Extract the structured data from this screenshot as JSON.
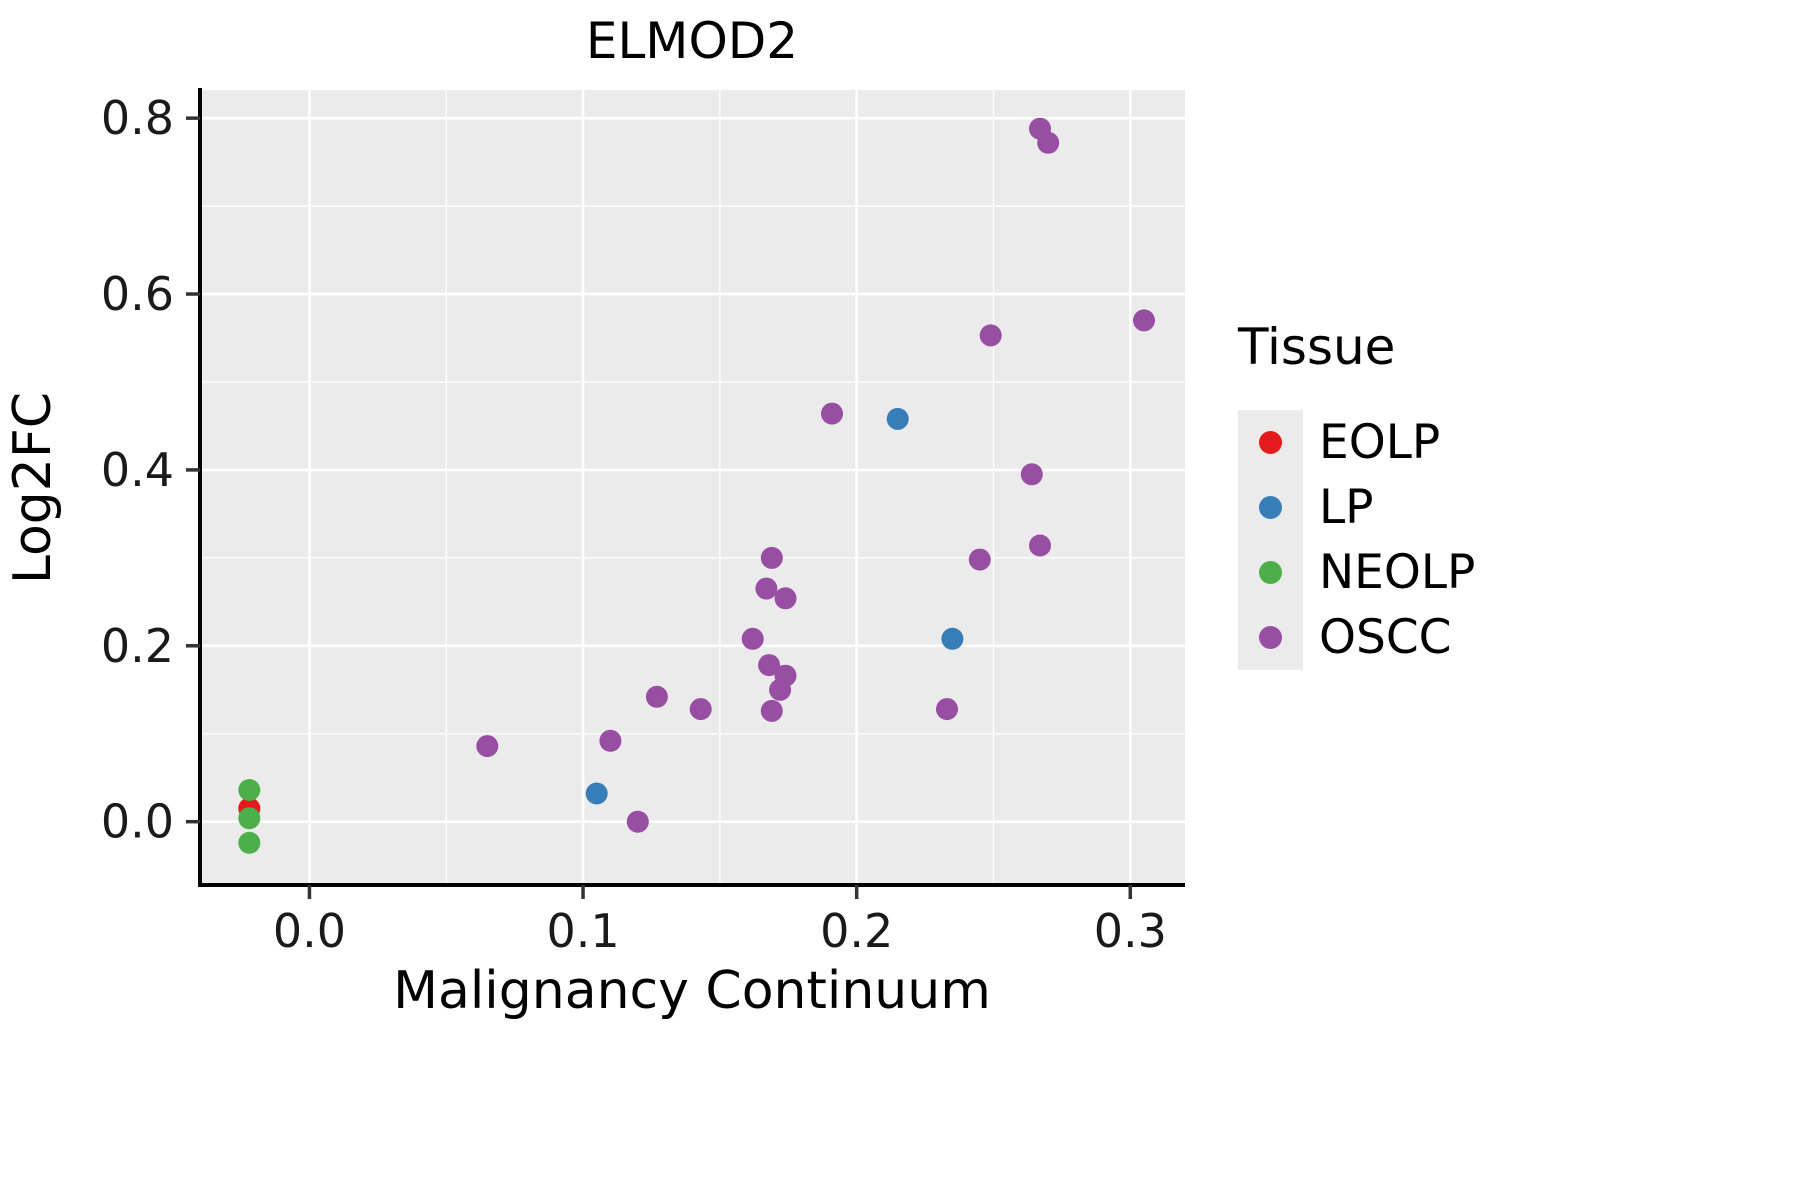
{
  "chart_data": {
    "type": "scatter",
    "title": "ELMOD2",
    "xlabel": "Malignancy Continuum",
    "ylabel": "Log2FC",
    "xlim": [
      -0.04,
      0.32
    ],
    "ylim": [
      -0.072,
      0.832
    ],
    "x_ticks": [
      0.0,
      0.1,
      0.2,
      0.3
    ],
    "x_tick_labels": [
      "0.0",
      "0.1",
      "0.2",
      "0.3"
    ],
    "y_ticks": [
      0.0,
      0.2,
      0.4,
      0.6,
      0.8
    ],
    "y_tick_labels": [
      "0.0",
      "0.2",
      "0.4",
      "0.6",
      "0.8"
    ],
    "x_minor_ticks": [
      0.05,
      0.15,
      0.25
    ],
    "y_minor_ticks": [
      0.1,
      0.3,
      0.5,
      0.7
    ],
    "grid": true,
    "legend_position": "right",
    "series": [
      {
        "name": "EOLP",
        "color": "#E41A1C",
        "points": [
          [
            -0.022,
            0.015
          ]
        ]
      },
      {
        "name": "LP",
        "color": "#377EB8",
        "points": [
          [
            0.105,
            0.032
          ],
          [
            0.215,
            0.458
          ],
          [
            0.235,
            0.208
          ]
        ]
      },
      {
        "name": "NEOLP",
        "color": "#4DAF4A",
        "points": [
          [
            -0.022,
            0.036
          ],
          [
            -0.022,
            0.004
          ],
          [
            -0.022,
            -0.024
          ]
        ]
      },
      {
        "name": "OSCC",
        "color": "#984EA3",
        "points": [
          [
            0.065,
            0.086
          ],
          [
            0.11,
            0.092
          ],
          [
            0.12,
            0.0
          ],
          [
            0.127,
            0.142
          ],
          [
            0.143,
            0.128
          ],
          [
            0.162,
            0.208
          ],
          [
            0.169,
            0.3
          ],
          [
            0.167,
            0.265
          ],
          [
            0.174,
            0.254
          ],
          [
            0.168,
            0.178
          ],
          [
            0.174,
            0.166
          ],
          [
            0.172,
            0.15
          ],
          [
            0.169,
            0.126
          ],
          [
            0.191,
            0.464
          ],
          [
            0.233,
            0.128
          ],
          [
            0.245,
            0.298
          ],
          [
            0.249,
            0.553
          ],
          [
            0.264,
            0.395
          ],
          [
            0.267,
            0.314
          ],
          [
            0.267,
            0.788
          ],
          [
            0.27,
            0.772
          ],
          [
            0.305,
            0.57
          ]
        ]
      }
    ]
  },
  "legend": {
    "title": "Tissue",
    "entries": [
      "EOLP",
      "LP",
      "NEOLP",
      "OSCC"
    ]
  },
  "theme": {
    "panel_bg": "#EBEBEB",
    "grid_color": "#FFFFFF",
    "axis_color": "#000000",
    "tick_color": "#333333",
    "text_color": "#1A1A1A",
    "legend_key_bg": "#EBEBEB"
  }
}
